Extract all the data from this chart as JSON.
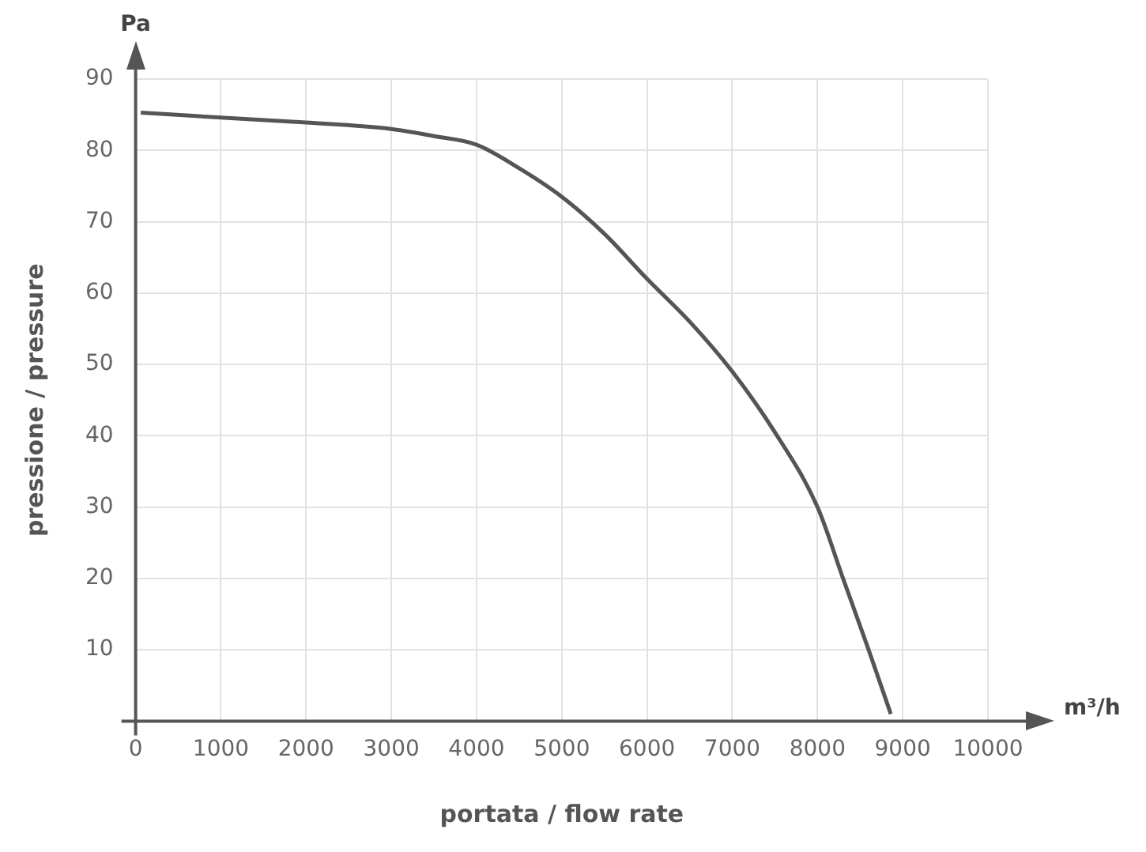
{
  "chart_data": {
    "type": "line",
    "xlabel": "portata / flow rate",
    "ylabel": "pressione / pressure",
    "annotations": [
      "Pa",
      "m³/h"
    ],
    "x": [
      60,
      1000,
      2000,
      3000,
      3500,
      4000,
      4500,
      5000,
      5500,
      6000,
      6500,
      7000,
      7500,
      8000,
      8300,
      8600,
      8860
    ],
    "series": [
      {
        "color": "#555555",
        "values": [
          85.3,
          84.6,
          83.9,
          83,
          82,
          80.8,
          77.5,
          73.5,
          68.3,
          62,
          56,
          49,
          40.5,
          30,
          20,
          10,
          1
        ]
      }
    ],
    "xlim": [
      0,
      10000
    ],
    "ylim": [
      0,
      90
    ],
    "xticks": [
      0,
      1000,
      2000,
      3000,
      4000,
      5000,
      6000,
      7000,
      8000,
      9000,
      10000
    ],
    "yticks": [
      {
        "value": 0,
        "label": null
      },
      10,
      20,
      30,
      40,
      50,
      60,
      70,
      80,
      90
    ],
    "grid": true,
    "legend": false,
    "marker": "none",
    "line_style": "solid"
  }
}
